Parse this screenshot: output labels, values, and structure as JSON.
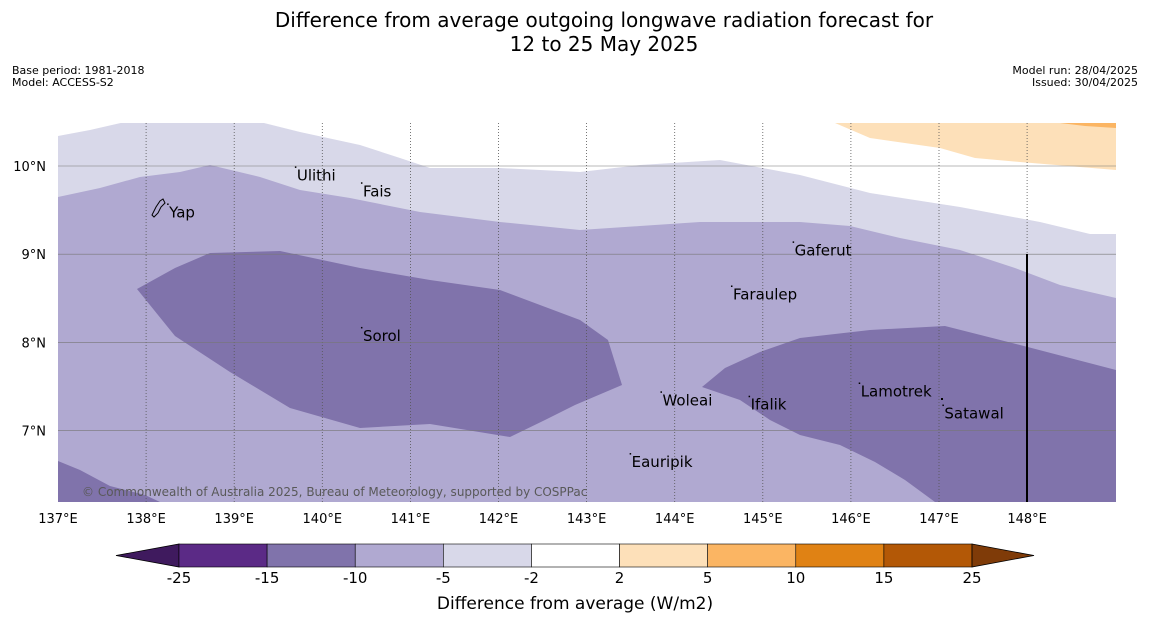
{
  "title": {
    "line1": "Difference from average outgoing longwave radiation forecast for",
    "line2": "12 to 25 May 2025"
  },
  "meta_left": {
    "base_period": "Base period: 1981-2018",
    "model": "Model: ACCESS-S2"
  },
  "meta_right": {
    "model_run": "Model run: 28/04/2025",
    "issued": "Issued: 30/04/2025"
  },
  "lon_ticks": [
    "137°E",
    "138°E",
    "139°E",
    "140°E",
    "141°E",
    "142°E",
    "143°E",
    "144°E",
    "145°E",
    "146°E",
    "147°E",
    "148°E"
  ],
  "lat_ticks": [
    "10°N",
    "9°N",
    "8°N",
    "7°N"
  ],
  "places": [
    {
      "name": "Yap",
      "lon": 138.25,
      "lat": 9.53
    },
    {
      "name": "Ulithi",
      "lon": 139.7,
      "lat": 9.95
    },
    {
      "name": "Fais",
      "lon": 140.45,
      "lat": 9.77
    },
    {
      "name": "Gaferut",
      "lon": 145.35,
      "lat": 9.1
    },
    {
      "name": "Faraulep",
      "lon": 144.65,
      "lat": 8.6
    },
    {
      "name": "Sorol",
      "lon": 140.45,
      "lat": 8.13
    },
    {
      "name": "Woleai",
      "lon": 143.85,
      "lat": 7.4
    },
    {
      "name": "Ifalik",
      "lon": 144.85,
      "lat": 7.35
    },
    {
      "name": "Lamotrek",
      "lon": 146.1,
      "lat": 7.5
    },
    {
      "name": "Satawal",
      "lon": 147.05,
      "lat": 7.25
    },
    {
      "name": "Eauripik",
      "lon": 143.5,
      "lat": 6.7
    }
  ],
  "copyright": "© Commonwealth of Australia 2025, Bureau of Meteorology, supported by COSPPac",
  "colorbar": {
    "ticks": [
      "-25",
      "-15",
      "-10",
      "-5",
      "-2",
      "2",
      "5",
      "10",
      "15",
      "25"
    ],
    "colors": [
      "#3f1a5e",
      "#5b2a86",
      "#8073ab",
      "#b0a9d1",
      "#d8d8e9",
      "#ffffff",
      "#fde0b9",
      "#fbb563",
      "#e08214",
      "#b35806",
      "#7f3b08"
    ],
    "label": "Difference from average (W/m2)"
  },
  "legend_colors": {
    "lightest_purple": "#d8d8e9",
    "light_purple": "#b0a9d1",
    "mid_purple": "#8073ab",
    "light_orange": "#fde0b9",
    "orange": "#fbb563"
  }
}
